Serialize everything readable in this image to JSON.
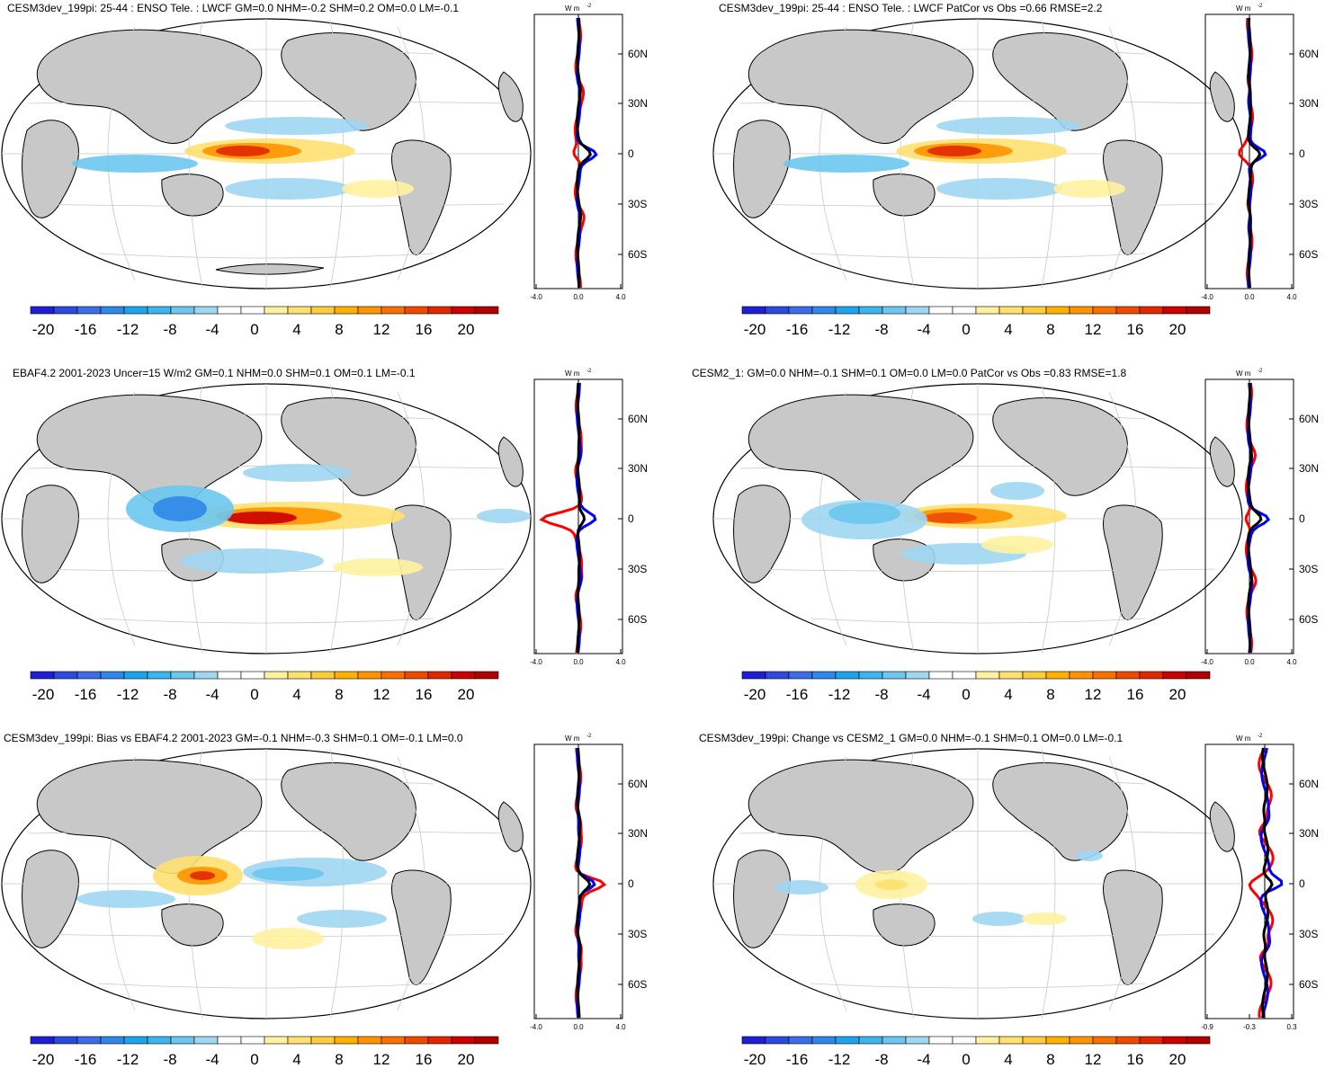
{
  "colorbar": {
    "labels": [
      "-20",
      "-16",
      "-12",
      "-8",
      "-4",
      "0",
      "4",
      "8",
      "12",
      "16",
      "20"
    ],
    "colors": [
      "#1e1ed4",
      "#2a4ae0",
      "#3c6ce6",
      "#2f87e8",
      "#1ea4ec",
      "#3cb4ee",
      "#6cc6ee",
      "#9fd6f2",
      "#ffffff",
      "#ffffff",
      "#fff1a0",
      "#ffe070",
      "#ffcc3c",
      "#ffb000",
      "#ff9400",
      "#f97000",
      "#ee4a00",
      "#e02800",
      "#cc0000",
      "#b00000"
    ]
  },
  "map_colors": {
    "land": "#c8c8c8",
    "ocean": "#ffffff",
    "grid": "#c8c8c8",
    "coast": "#000000"
  },
  "zonal_colors": {
    "model": "#0000ff",
    "obs": "#ff0000",
    "diff": "#000000"
  },
  "panels": [
    {
      "id": "p1",
      "title": "CESM3dev_199pi: 25-44 : ENSO Tele. : LWCF GM=0.0 NHM=-0.2 SHM=0.2 OM=0.0 LM=-0.1",
      "unit": "W m",
      "unit_sup": "-2",
      "lat_labels": [
        "60N",
        "30N",
        "0",
        "30S",
        "60S"
      ],
      "x_labels": [
        "-4.0",
        "0.0",
        "4.0"
      ]
    },
    {
      "id": "p2",
      "title": "CESM3dev_199pi: 25-44 : ENSO Tele. : LWCF PatCor vs Obs =0.66 RMSE=2.2",
      "unit": "W m",
      "unit_sup": "-2",
      "lat_labels": [
        "60N",
        "30N",
        "0",
        "30S",
        "60S"
      ],
      "x_labels": [
        "-4.0",
        "0.0",
        "4.0"
      ]
    },
    {
      "id": "p3",
      "title": "EBAF4.2 2001-2023 Uncer=15 W/m2 GM=0.1 NHM=0.0 SHM=0.1 OM=0.1 LM=-0.1",
      "unit": "W m",
      "unit_sup": "-2",
      "lat_labels": [
        "60N",
        "30N",
        "0",
        "30S",
        "60S"
      ],
      "x_labels": [
        "-4.0",
        "0.0",
        "4.0"
      ]
    },
    {
      "id": "p4",
      "title": "CESM2_1: GM=0.0 NHM=-0.1 SHM=0.1 OM=0.0 LM=0.0 PatCor vs Obs =0.83 RMSE=1.8",
      "unit": "W m",
      "unit_sup": "-2",
      "lat_labels": [
        "60N",
        "30N",
        "0",
        "30S",
        "60S"
      ],
      "x_labels": [
        "-4.0",
        "0.0",
        "4.0"
      ]
    },
    {
      "id": "p5",
      "title": "CESM3dev_199pi: Bias vs EBAF4.2 2001-2023 GM=-0.1 NHM=-0.3 SHM=0.1 OM=-0.1 LM=0.0",
      "unit": "W m",
      "unit_sup": "-2",
      "lat_labels": [
        "60N",
        "30N",
        "0",
        "30S",
        "60S"
      ],
      "x_labels": [
        "-4.0",
        "0.0",
        "4.0"
      ]
    },
    {
      "id": "p6",
      "title": "CESM3dev_199pi: Change vs CESM2_1 GM=0.0 NHM=-0.1 SHM=0.1 OM=0.0 LM=-0.1",
      "unit": "W m",
      "unit_sup": "-2",
      "lat_labels": [
        "60N",
        "30N",
        "0",
        "30S",
        "60S"
      ],
      "x_labels": [
        "-0.9",
        "-0.3",
        "0.3"
      ]
    }
  ]
}
